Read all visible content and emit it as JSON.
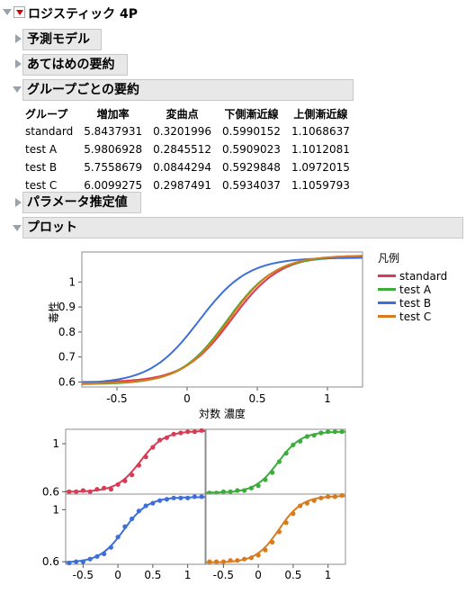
{
  "title": "ロジスティック 4P",
  "sections": {
    "pred_model": "予測モデル",
    "fit_summary": "あてはめの要約",
    "group_summary": "グループごとの要約",
    "param_est": "パラメータ推定値",
    "plot": "プロット"
  },
  "table": {
    "headers": [
      "グループ",
      "増加率",
      "変曲点",
      "下側漸近線",
      "上側漸近線"
    ],
    "rows": [
      [
        "standard",
        "5.8437931",
        "0.3201996",
        "0.5990152",
        "1.1068637"
      ],
      [
        "test A",
        "5.9806928",
        "0.2845512",
        "0.5909023",
        "1.1012081"
      ],
      [
        "test B",
        "5.7558679",
        "0.0844294",
        "0.5929848",
        "1.0972015"
      ],
      [
        "test C",
        "6.0099275",
        "0.2987491",
        "0.5934037",
        "1.1059793"
      ]
    ]
  },
  "legend": {
    "title": "凡例",
    "items": [
      {
        "name": "standard",
        "color": "#d93a55"
      },
      {
        "name": "test A",
        "color": "#3bad3b"
      },
      {
        "name": "test B",
        "color": "#3d6fd9"
      },
      {
        "name": "test C",
        "color": "#d97a1c"
      }
    ]
  },
  "chart_data": [
    {
      "type": "line",
      "xlabel": "対数 濃度",
      "ylabel": "毒性",
      "xlim": [
        -0.75,
        1.25
      ],
      "ylim": [
        0.58,
        1.12
      ],
      "xticks": [
        "-0.5",
        "0",
        "0.5",
        "1"
      ],
      "yticks": [
        "0.6",
        "0.7",
        "0.8",
        "0.9",
        "1"
      ],
      "series": [
        {
          "name": "standard",
          "growth": 5.8437931,
          "inflection": 0.3201996,
          "lower": 0.5990152,
          "upper": 1.1068637
        },
        {
          "name": "test A",
          "growth": 5.9806928,
          "inflection": 0.2845512,
          "lower": 0.5909023,
          "upper": 1.1012081
        },
        {
          "name": "test B",
          "growth": 5.7558679,
          "inflection": 0.0844294,
          "lower": 0.5929848,
          "upper": 1.0972015
        },
        {
          "name": "test C",
          "growth": 6.0099275,
          "inflection": 0.2987491,
          "lower": 0.5934037,
          "upper": 1.1059793
        }
      ]
    },
    {
      "type": "scatter",
      "xlim": [
        -0.75,
        1.25
      ],
      "ylim": [
        0.58,
        1.12
      ],
      "xticks": [
        "-0.5",
        "0",
        "0.5",
        "1"
      ],
      "yticks": [
        "0.6",
        "1"
      ],
      "x": [
        -0.7,
        -0.6,
        -0.5,
        -0.4,
        -0.3,
        -0.2,
        -0.1,
        0.0,
        0.1,
        0.2,
        0.3,
        0.4,
        0.5,
        0.6,
        0.7,
        0.8,
        0.9,
        1.0,
        1.1,
        1.2
      ],
      "panels": [
        {
          "name": "standard",
          "y": [
            0.6,
            0.6,
            0.61,
            0.6,
            0.62,
            0.63,
            0.62,
            0.66,
            0.69,
            0.74,
            0.82,
            0.89,
            0.97,
            1.03,
            1.05,
            1.08,
            1.09,
            1.1,
            1.1,
            1.11
          ]
        },
        {
          "name": "test A",
          "y": [
            0.59,
            0.59,
            0.6,
            0.6,
            0.61,
            0.61,
            0.63,
            0.65,
            0.7,
            0.76,
            0.85,
            0.92,
            0.99,
            1.02,
            1.06,
            1.07,
            1.09,
            1.1,
            1.1,
            1.1
          ]
        },
        {
          "name": "test B",
          "y": [
            0.59,
            0.6,
            0.6,
            0.62,
            0.64,
            0.66,
            0.71,
            0.79,
            0.87,
            0.93,
            0.99,
            1.03,
            1.05,
            1.07,
            1.08,
            1.09,
            1.09,
            1.09,
            1.1,
            1.1
          ]
        },
        {
          "name": "test C",
          "y": [
            0.6,
            0.6,
            0.6,
            0.61,
            0.61,
            0.62,
            0.63,
            0.65,
            0.69,
            0.75,
            0.83,
            0.9,
            0.97,
            1.03,
            1.05,
            1.07,
            1.09,
            1.1,
            1.1,
            1.11
          ]
        }
      ]
    }
  ]
}
